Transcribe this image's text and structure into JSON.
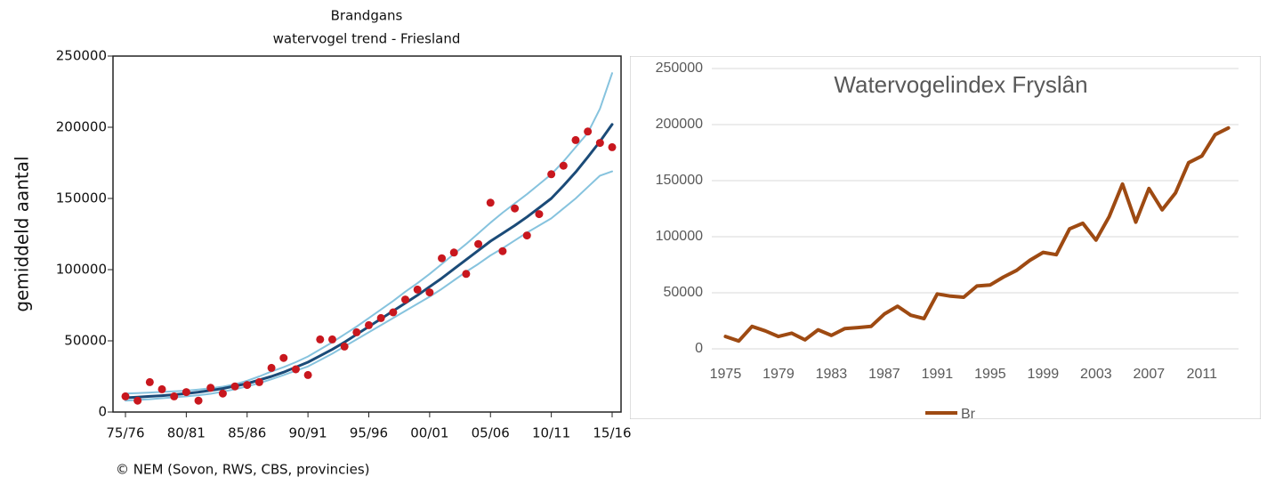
{
  "chart_data": [
    {
      "type": "line",
      "title": "Brandgans",
      "subtitle": "watervogel trend - Friesland",
      "y_label": "gemiddeld aantal",
      "source": "© NEM (Sovon, RWS, CBS, provincies)",
      "categories": [
        "75/76",
        null,
        null,
        null,
        null,
        "80/81",
        null,
        null,
        null,
        null,
        "85/86",
        null,
        null,
        null,
        null,
        "90/91",
        null,
        null,
        null,
        null,
        "95/96",
        null,
        null,
        null,
        null,
        "00/01",
        null,
        null,
        null,
        null,
        "05/06",
        null,
        null,
        null,
        null,
        "10/11",
        null,
        null,
        null,
        null,
        "15/16"
      ],
      "ylim": [
        0,
        250000
      ],
      "yticks": [
        0,
        50000,
        100000,
        150000,
        200000,
        250000
      ],
      "series": [
        {
          "style": "band",
          "color": "#86c3de",
          "values": [
            13000,
            13300,
            13700,
            14100,
            14500,
            15000,
            15800,
            16700,
            17800,
            19500,
            22000,
            25000,
            28500,
            31500,
            35000,
            39000,
            44000,
            49000,
            54500,
            60000,
            66000,
            72000,
            78000,
            84500,
            90500,
            97000,
            104000,
            111000,
            118000,
            125500,
            133000,
            140000,
            146500,
            153000,
            160000,
            167000,
            176000,
            186000,
            196000,
            213000,
            238000
          ]
        },
        {
          "style": "band",
          "color": "#86c3de",
          "values": [
            8000,
            8500,
            9000,
            9700,
            10300,
            11000,
            11800,
            12800,
            14300,
            16000,
            18000,
            20300,
            23000,
            26000,
            29000,
            32000,
            36500,
            41000,
            46000,
            51000,
            56000,
            61000,
            66000,
            71000,
            76000,
            81000,
            86500,
            92500,
            98500,
            104000,
            110000,
            115000,
            120500,
            126000,
            131000,
            136000,
            143000,
            150000,
            158000,
            166000,
            169000
          ]
        },
        {
          "style": "trend",
          "color": "#1b4b78",
          "values": [
            10000,
            10500,
            11000,
            11500,
            12200,
            13000,
            14000,
            15200,
            16500,
            18200,
            20000,
            22500,
            25000,
            28000,
            31500,
            35000,
            39500,
            44000,
            49000,
            54500,
            60000,
            65500,
            71000,
            76500,
            82000,
            88000,
            94000,
            100500,
            107000,
            113500,
            120000,
            125500,
            131000,
            137000,
            143500,
            150000,
            159000,
            168500,
            179000,
            190000,
            202000
          ]
        },
        {
          "style": "markers",
          "color": "#c8171e",
          "values": [
            11000,
            8000,
            21000,
            16000,
            11000,
            14000,
            8000,
            17000,
            13000,
            18000,
            19000,
            21000,
            31000,
            38000,
            30000,
            26000,
            51000,
            51000,
            46000,
            56000,
            61000,
            66000,
            70000,
            79000,
            86000,
            84000,
            108000,
            112000,
            97000,
            118000,
            147000,
            113000,
            143000,
            124000,
            139000,
            167000,
            173000,
            191000,
            197000,
            189000,
            186000
          ]
        }
      ]
    },
    {
      "type": "line",
      "title": "Watervogelindex Fryslân",
      "categories": [
        "1975",
        null,
        null,
        null,
        "1979",
        null,
        null,
        null,
        "1983",
        null,
        null,
        null,
        "1987",
        null,
        null,
        null,
        "1991",
        null,
        null,
        null,
        "1995",
        null,
        null,
        null,
        "1999",
        null,
        null,
        null,
        "2003",
        null,
        null,
        null,
        "2007",
        null,
        null,
        null,
        "2011",
        null,
        null
      ],
      "ylim": [
        0,
        250000
      ],
      "yticks": [
        0,
        50000,
        100000,
        150000,
        200000,
        250000
      ],
      "grid": true,
      "legend": "bottom",
      "series": [
        {
          "name": "Br",
          "color": "#9e4a12",
          "values": [
            11000,
            7000,
            20000,
            16000,
            11000,
            14000,
            8000,
            17000,
            12000,
            18000,
            19000,
            20000,
            31000,
            38000,
            30000,
            27000,
            49000,
            47000,
            46000,
            56000,
            57000,
            64000,
            70000,
            79000,
            86000,
            84000,
            107000,
            112000,
            97000,
            118000,
            147000,
            113000,
            143000,
            124000,
            139000,
            166000,
            172000,
            191000,
            197000
          ]
        }
      ]
    }
  ]
}
